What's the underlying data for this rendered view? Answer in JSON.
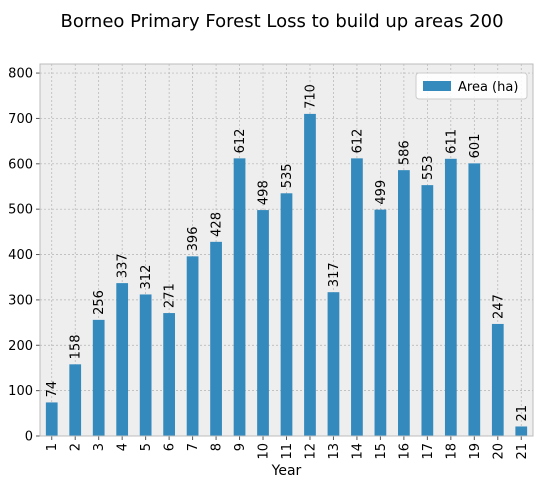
{
  "chart_data": {
    "type": "bar",
    "title": "Borneo Primary Forest Loss to build up areas 200",
    "xlabel": "Year",
    "ylabel": "",
    "categories": [
      "1",
      "2",
      "3",
      "4",
      "5",
      "6",
      "7",
      "8",
      "9",
      "10",
      "11",
      "12",
      "13",
      "14",
      "15",
      "16",
      "17",
      "18",
      "19",
      "20",
      "21"
    ],
    "series": [
      {
        "name": "Area (ha)",
        "values": [
          74,
          158,
          256,
          337,
          312,
          271,
          396,
          428,
          612,
          498,
          535,
          710,
          317,
          612,
          499,
          586,
          553,
          611,
          601,
          247,
          21
        ],
        "color": "#348ABD"
      }
    ],
    "ylim": [
      0,
      820
    ],
    "yticks": [
      "0",
      "100",
      "200",
      "300",
      "400",
      "500",
      "600",
      "700",
      "800"
    ],
    "grid": true,
    "legend_position": "top-right",
    "background_color": "#EEEEEE",
    "grid_color": "#B2B2B2"
  }
}
